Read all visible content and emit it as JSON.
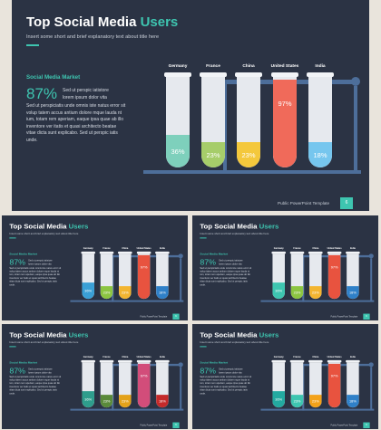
{
  "slide": {
    "title_main": "Top Social Media ",
    "title_accent": "Users",
    "subtitle": "Insert some short and brief explanatory text about title here",
    "market_label": "Social Media Market",
    "big_value": "87%",
    "side_text": "Sed ut perspic iatistore lorem ipsum dolor vita",
    "body_text": "Sed ut perspiciatis unde omnis iste natus error sit volup tatem accus antium dolore mque lauda nt ium, totam rem aperiam, eaque ipsa quae ab illo inventore ver itatis et quasi architecto beatae vitae dicta sunt explicabo.  Sed ut perspic iatis unde.",
    "footer": "Public PowerPoint Template",
    "page": "6"
  },
  "chart_data": {
    "type": "bar",
    "categories": [
      "Germany",
      "France",
      "China",
      "United States",
      "India"
    ],
    "values": [
      36,
      23,
      23,
      97,
      18
    ],
    "value_labels": [
      "36%",
      "23%",
      "23%",
      "97%",
      "18%"
    ],
    "ylim": [
      0,
      100
    ]
  },
  "variants": [
    {
      "colors": [
        "#7ed0bc",
        "#a6cd6a",
        "#f4c83c",
        "#f06a5a",
        "#76c6ee"
      ]
    },
    {
      "colors": [
        "#3aa0d6",
        "#8cc541",
        "#f3b531",
        "#e8533f",
        "#2f80c8"
      ]
    },
    {
      "colors": [
        "#3ec5b0",
        "#8cc541",
        "#f3b531",
        "#e8533f",
        "#2f80c8"
      ]
    },
    {
      "colors": [
        "#2e9d8c",
        "#5a8a3a",
        "#e3a21a",
        "#d24d7a",
        "#c42a2a"
      ]
    },
    {
      "colors": [
        "#23a9a0",
        "#3ec5b0",
        "#f3a21a",
        "#e8533f",
        "#2f80c8"
      ]
    }
  ]
}
